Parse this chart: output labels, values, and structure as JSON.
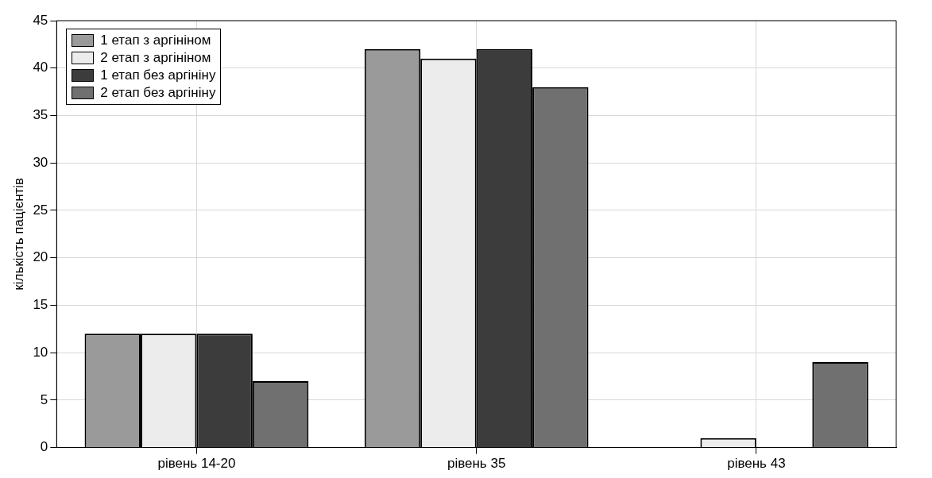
{
  "chart_data": {
    "type": "bar",
    "ylabel": "кількість пацієнтів",
    "categories": [
      "рівень 14-20",
      "рівень 35",
      "рівень 43"
    ],
    "series": [
      {
        "name": "1 етап з аргініном",
        "color": "#9a9a9a",
        "values": [
          12,
          42,
          0
        ]
      },
      {
        "name": "2 етап з аргініном",
        "color": "#ececec",
        "values": [
          12,
          41,
          1
        ]
      },
      {
        "name": "1 етап без аргініну",
        "color": "#3c3c3c",
        "values": [
          12,
          42,
          0
        ]
      },
      {
        "name": "2 етап без аргініну",
        "color": "#707070",
        "values": [
          7,
          38,
          9
        ]
      }
    ],
    "ylim": [
      0,
      45
    ],
    "yticks": [
      0,
      5,
      10,
      15,
      20,
      25,
      30,
      35,
      40,
      45
    ],
    "grid": true,
    "legend": "top left"
  }
}
